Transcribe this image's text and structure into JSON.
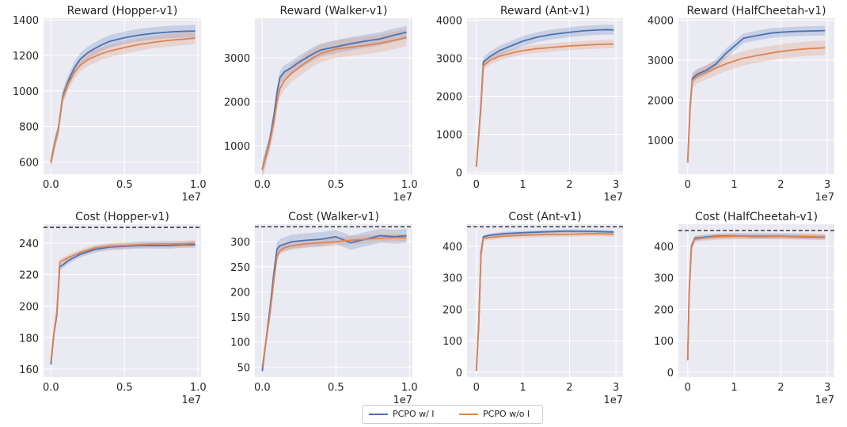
{
  "colors": {
    "pcpo_with": "#4c72b0",
    "pcpo_without": "#dd8452",
    "panel_bg": "#eaeaf2",
    "grid": "#ffffff",
    "limit_line": "#000000"
  },
  "legend": {
    "placement": "bottom-center",
    "entries": [
      {
        "label": "PCPO w/ I",
        "color": "#4c72b0"
      },
      {
        "label": "PCPO w/o I",
        "color": "#dd8452"
      }
    ]
  },
  "chart_data": [
    {
      "type": "line",
      "title": "Reward (Hopper-v1)",
      "x_multiplier": "1e7",
      "xlim": [
        -0.05,
        1.02
      ],
      "ylim": [
        530,
        1410
      ],
      "xticks": [
        0.0,
        0.5,
        1.0
      ],
      "xtick_labels": [
        "0.0",
        "0.5",
        "1.0"
      ],
      "yticks": [
        600,
        800,
        1000,
        1200,
        1400
      ],
      "ytick_labels": [
        "600",
        "800",
        "1000",
        "1200",
        "1400"
      ],
      "grid": true,
      "series": [
        {
          "name": "PCPO w/ I",
          "color": "#4c72b0",
          "band": 35,
          "x": [
            0.0,
            0.03,
            0.05,
            0.08,
            0.12,
            0.16,
            0.2,
            0.25,
            0.3,
            0.35,
            0.4,
            0.5,
            0.6,
            0.7,
            0.8,
            0.9,
            0.98
          ],
          "y": [
            600,
            720,
            780,
            970,
            1060,
            1130,
            1180,
            1215,
            1240,
            1262,
            1280,
            1300,
            1315,
            1325,
            1332,
            1336,
            1338
          ]
        },
        {
          "name": "PCPO w/o I",
          "color": "#dd8452",
          "band": 35,
          "x": [
            0.0,
            0.03,
            0.05,
            0.08,
            0.12,
            0.16,
            0.2,
            0.25,
            0.3,
            0.35,
            0.4,
            0.5,
            0.6,
            0.7,
            0.8,
            0.9,
            0.98
          ],
          "y": [
            595,
            715,
            775,
            960,
            1045,
            1105,
            1145,
            1175,
            1195,
            1212,
            1225,
            1245,
            1262,
            1275,
            1285,
            1292,
            1298
          ]
        }
      ]
    },
    {
      "type": "line",
      "title": "Reward (Walker-v1)",
      "x_multiplier": "1e7",
      "xlim": [
        -0.05,
        1.02
      ],
      "ylim": [
        350,
        3900
      ],
      "xticks": [
        0.0,
        0.5,
        1.0
      ],
      "xtick_labels": [
        "0.0",
        "0.5",
        "1.0"
      ],
      "yticks": [
        1000,
        2000,
        3000
      ],
      "ytick_labels": [
        "1000",
        "2000",
        "3000"
      ],
      "grid": true,
      "series": [
        {
          "name": "PCPO w/ I",
          "color": "#4c72b0",
          "band": 150,
          "x": [
            0.0,
            0.05,
            0.08,
            0.1,
            0.12,
            0.15,
            0.2,
            0.25,
            0.3,
            0.35,
            0.4,
            0.5,
            0.6,
            0.7,
            0.8,
            0.9,
            0.98
          ],
          "y": [
            460,
            1100,
            1700,
            2200,
            2550,
            2680,
            2780,
            2900,
            3000,
            3100,
            3180,
            3250,
            3320,
            3380,
            3430,
            3520,
            3580
          ]
        },
        {
          "name": "PCPO w/o I",
          "color": "#dd8452",
          "band": 200,
          "x": [
            0.0,
            0.05,
            0.08,
            0.1,
            0.12,
            0.15,
            0.2,
            0.25,
            0.3,
            0.35,
            0.4,
            0.5,
            0.6,
            0.7,
            0.8,
            0.9,
            0.98
          ],
          "y": [
            450,
            1050,
            1550,
            2000,
            2300,
            2480,
            2650,
            2780,
            2900,
            3010,
            3100,
            3200,
            3240,
            3280,
            3330,
            3400,
            3460
          ]
        }
      ]
    },
    {
      "type": "line",
      "title": "Reward (Ant-v1)",
      "x_multiplier": "1e7",
      "xlim": [
        -0.2,
        3.15
      ],
      "ylim": [
        -50,
        4050
      ],
      "xticks": [
        0,
        1,
        2,
        3
      ],
      "xtick_labels": [
        "0",
        "1",
        "2",
        "3"
      ],
      "yticks": [
        0,
        1000,
        2000,
        3000,
        4000
      ],
      "ytick_labels": [
        "0",
        "1000",
        "2000",
        "3000",
        "4000"
      ],
      "grid": true,
      "series": [
        {
          "name": "PCPO w/ I",
          "color": "#4c72b0",
          "band": 130,
          "x": [
            0.0,
            0.1,
            0.15,
            0.3,
            0.5,
            0.8,
            1.0,
            1.3,
            1.6,
            2.0,
            2.3,
            2.6,
            2.8,
            2.95
          ],
          "y": [
            150,
            1800,
            2900,
            3050,
            3200,
            3350,
            3450,
            3550,
            3620,
            3680,
            3720,
            3740,
            3750,
            3740
          ]
        },
        {
          "name": "PCPO w/o I",
          "color": "#dd8452",
          "band": 110,
          "x": [
            0.0,
            0.1,
            0.15,
            0.3,
            0.5,
            0.8,
            1.0,
            1.3,
            1.6,
            2.0,
            2.3,
            2.6,
            2.8,
            2.95
          ],
          "y": [
            140,
            1700,
            2800,
            2950,
            3050,
            3150,
            3200,
            3250,
            3280,
            3320,
            3340,
            3360,
            3370,
            3370
          ]
        }
      ]
    },
    {
      "type": "line",
      "title": "Reward (HalfCheetah-v1)",
      "x_multiplier": "1e7",
      "xlim": [
        -0.2,
        3.15
      ],
      "ylim": [
        150,
        4050
      ],
      "xticks": [
        0,
        1,
        2,
        3
      ],
      "xtick_labels": [
        "0",
        "1",
        "2",
        "3"
      ],
      "yticks": [
        1000,
        2000,
        3000,
        4000
      ],
      "ytick_labels": [
        "1000",
        "2000",
        "3000",
        "4000"
      ],
      "grid": true,
      "series": [
        {
          "name": "PCPO w/ I",
          "color": "#4c72b0",
          "band": 120,
          "x": [
            0.0,
            0.05,
            0.1,
            0.2,
            0.4,
            0.6,
            0.8,
            1.0,
            1.2,
            1.5,
            1.8,
            2.0,
            2.3,
            2.6,
            2.95
          ],
          "y": [
            450,
            1800,
            2550,
            2650,
            2750,
            2900,
            3150,
            3350,
            3550,
            3620,
            3680,
            3700,
            3720,
            3730,
            3740
          ]
        },
        {
          "name": "PCPO w/o I",
          "color": "#dd8452",
          "band": 180,
          "x": [
            0.0,
            0.05,
            0.1,
            0.2,
            0.4,
            0.6,
            0.8,
            1.0,
            1.2,
            1.5,
            1.8,
            2.0,
            2.3,
            2.6,
            2.95
          ],
          "y": [
            440,
            1750,
            2500,
            2600,
            2700,
            2800,
            2900,
            2980,
            3050,
            3120,
            3180,
            3220,
            3260,
            3290,
            3310
          ]
        }
      ]
    },
    {
      "type": "line",
      "title": "Cost (Hopper-v1)",
      "x_multiplier": "1e7",
      "xlim": [
        -0.05,
        1.02
      ],
      "ylim": [
        155,
        252
      ],
      "xticks": [
        0.0,
        0.5,
        1.0
      ],
      "xtick_labels": [
        "0.0",
        "0.5",
        "1.0"
      ],
      "yticks": [
        160,
        180,
        200,
        220,
        240
      ],
      "ytick_labels": [
        "160",
        "180",
        "200",
        "220",
        "240"
      ],
      "grid": true,
      "limit": 250,
      "series": [
        {
          "name": "PCPO w/ I",
          "color": "#4c72b0",
          "band": 2,
          "x": [
            0.0,
            0.02,
            0.04,
            0.06,
            0.08,
            0.12,
            0.2,
            0.3,
            0.4,
            0.5,
            0.6,
            0.7,
            0.8,
            0.9,
            0.98
          ],
          "y": [
            163,
            182,
            194,
            225,
            226,
            229,
            233,
            236,
            237.5,
            238,
            238.5,
            238.5,
            238.5,
            239,
            239
          ]
        },
        {
          "name": "PCPO w/o I",
          "color": "#dd8452",
          "band": 2,
          "x": [
            0.0,
            0.02,
            0.04,
            0.06,
            0.08,
            0.12,
            0.2,
            0.3,
            0.4,
            0.5,
            0.6,
            0.7,
            0.8,
            0.9,
            0.98
          ],
          "y": [
            165,
            183,
            196,
            228,
            229,
            231,
            234,
            237,
            238,
            238.5,
            239,
            239.5,
            239.5,
            239.5,
            240
          ]
        }
      ]
    },
    {
      "type": "line",
      "title": "Cost (Walker-v1)",
      "x_multiplier": "1e7",
      "xlim": [
        -0.05,
        1.02
      ],
      "ylim": [
        30,
        335
      ],
      "xticks": [
        0.0,
        0.5,
        1.0
      ],
      "xtick_labels": [
        "0.0",
        "0.5",
        "1.0"
      ],
      "yticks": [
        50,
        100,
        150,
        200,
        250,
        300
      ],
      "ytick_labels": [
        "50",
        "100",
        "150",
        "200",
        "250",
        "300"
      ],
      "grid": true,
      "limit": 330,
      "series": [
        {
          "name": "PCPO w/ I",
          "color": "#4c72b0",
          "band": 14,
          "x": [
            0.0,
            0.05,
            0.08,
            0.1,
            0.12,
            0.15,
            0.2,
            0.3,
            0.4,
            0.5,
            0.6,
            0.7,
            0.8,
            0.9,
            0.98
          ],
          "y": [
            42,
            160,
            240,
            285,
            292,
            295,
            300,
            303,
            305,
            310,
            298,
            305,
            312,
            310,
            312
          ]
        },
        {
          "name": "PCPO w/o I",
          "color": "#dd8452",
          "band": 8,
          "x": [
            0.0,
            0.05,
            0.08,
            0.1,
            0.12,
            0.15,
            0.2,
            0.3,
            0.4,
            0.5,
            0.6,
            0.7,
            0.8,
            0.9,
            0.98
          ],
          "y": [
            50,
            150,
            225,
            270,
            282,
            288,
            292,
            296,
            298,
            300,
            303,
            305,
            307,
            308,
            308
          ]
        }
      ]
    },
    {
      "type": "line",
      "title": "Cost (Ant-v1)",
      "x_multiplier": "1e7",
      "xlim": [
        -0.2,
        3.15
      ],
      "ylim": [
        -15,
        470
      ],
      "xticks": [
        0,
        1,
        2,
        3
      ],
      "xtick_labels": [
        "0",
        "1",
        "2",
        "3"
      ],
      "yticks": [
        0,
        100,
        200,
        300,
        400
      ],
      "ytick_labels": [
        "0",
        "100",
        "200",
        "300",
        "400"
      ],
      "grid": true,
      "limit": 462,
      "series": [
        {
          "name": "PCPO w/ I",
          "color": "#4c72b0",
          "band": 6,
          "x": [
            0.0,
            0.05,
            0.1,
            0.15,
            0.3,
            0.6,
            1.0,
            1.5,
            2.0,
            2.5,
            2.95
          ],
          "y": [
            5,
            150,
            380,
            430,
            435,
            440,
            443,
            446,
            448,
            447,
            445
          ]
        },
        {
          "name": "PCPO w/o I",
          "color": "#dd8452",
          "band": 8,
          "x": [
            0.0,
            0.05,
            0.1,
            0.15,
            0.3,
            0.6,
            1.0,
            1.5,
            2.0,
            2.5,
            2.95
          ],
          "y": [
            5,
            140,
            370,
            425,
            428,
            432,
            435,
            437,
            438,
            440,
            438
          ]
        }
      ]
    },
    {
      "type": "line",
      "title": "Cost (HalfCheetah-v1)",
      "x_multiplier": "1e7",
      "xlim": [
        -0.2,
        3.15
      ],
      "ylim": [
        -15,
        470
      ],
      "xticks": [
        0,
        1,
        2,
        3
      ],
      "xtick_labels": [
        "0",
        "1",
        "2",
        "3"
      ],
      "yticks": [
        0,
        100,
        200,
        300,
        400
      ],
      "ytick_labels": [
        "0",
        "100",
        "200",
        "300",
        "400"
      ],
      "grid": true,
      "limit": 450,
      "series": [
        {
          "name": "PCPO w/ I",
          "color": "#4c72b0",
          "band": 8,
          "x": [
            0.0,
            0.03,
            0.08,
            0.15,
            0.3,
            0.6,
            1.0,
            1.5,
            2.0,
            2.5,
            2.95
          ],
          "y": [
            40,
            250,
            400,
            425,
            428,
            432,
            433,
            431,
            432,
            430,
            429
          ]
        },
        {
          "name": "PCPO w/o I",
          "color": "#dd8452",
          "band": 10,
          "x": [
            0.0,
            0.03,
            0.08,
            0.15,
            0.3,
            0.6,
            1.0,
            1.5,
            2.0,
            2.5,
            2.95
          ],
          "y": [
            38,
            245,
            395,
            422,
            426,
            430,
            432,
            433,
            432,
            431,
            430
          ]
        }
      ]
    }
  ]
}
